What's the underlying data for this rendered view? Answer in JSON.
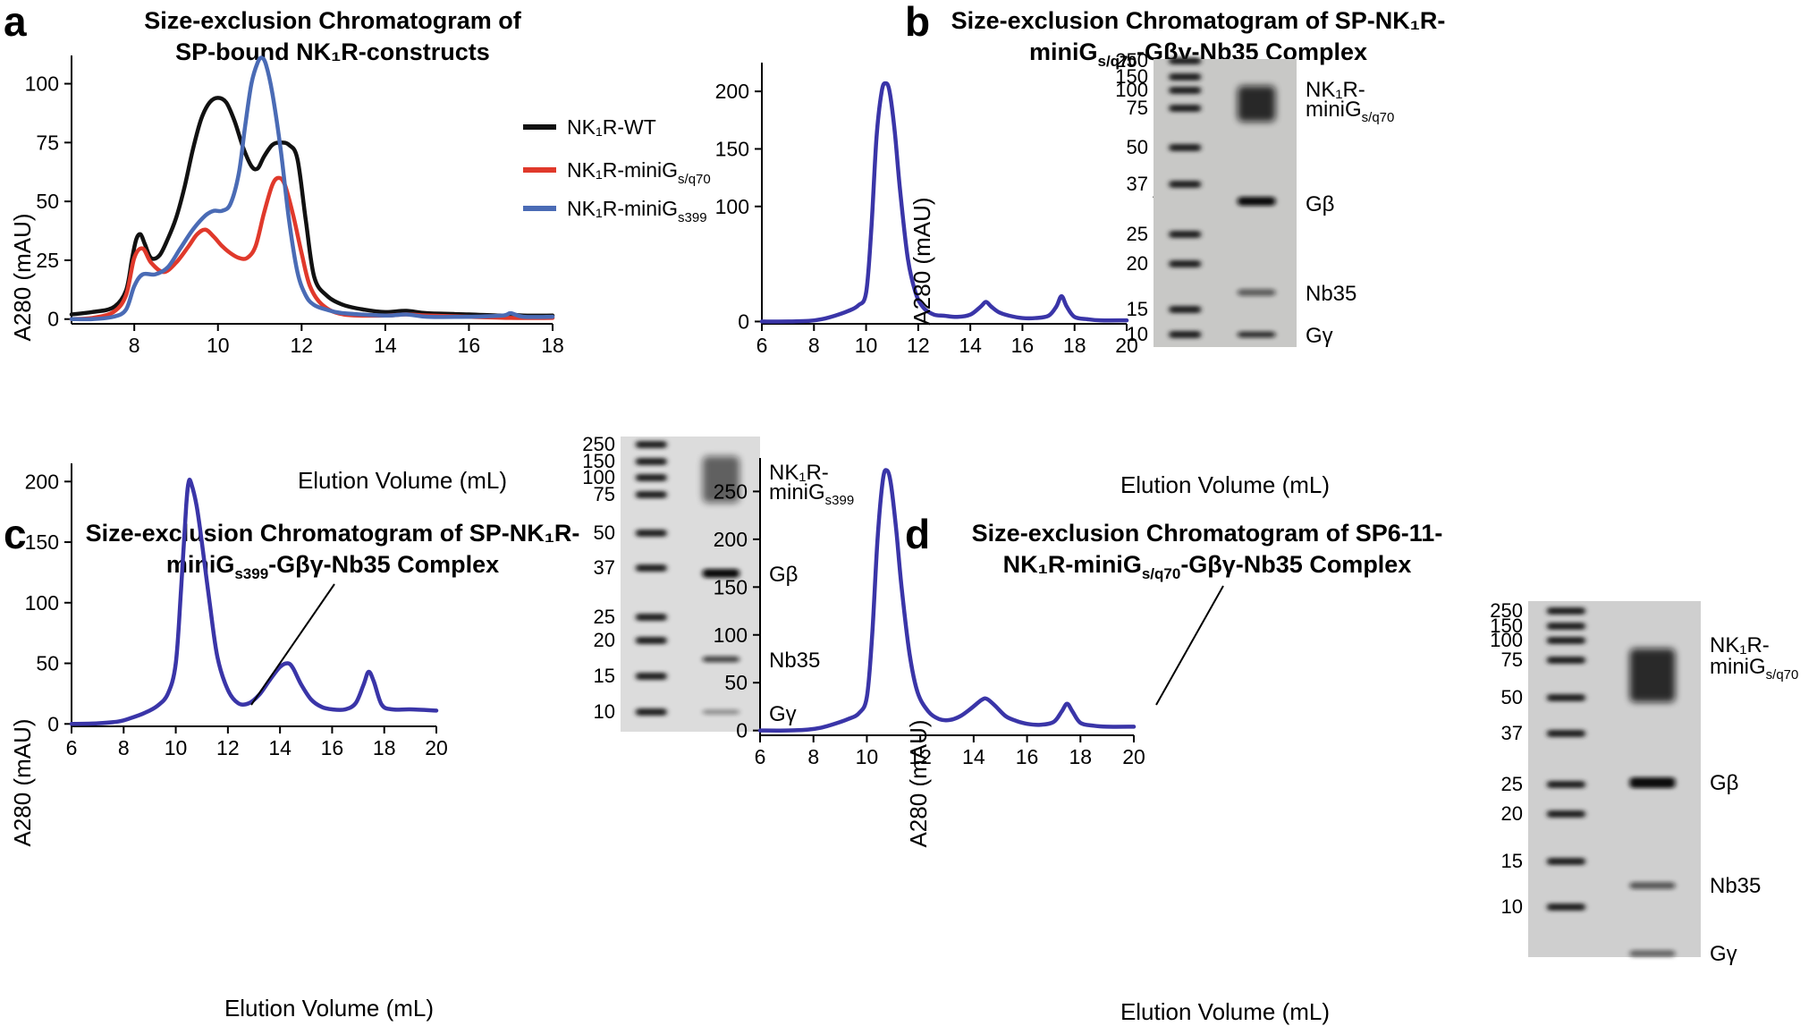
{
  "panels": {
    "a": {
      "letter": "a",
      "title": [
        "Size-exclusion Chromatogram of",
        "SP-bound NK₁R-constructs"
      ],
      "xlabel": "Elution Volume (mL)",
      "ylabel": "A280 (mAU)",
      "legend": [
        {
          "main": "NK₁R-WT",
          "sub": ""
        },
        {
          "main": "NK₁R-miniG",
          "sub": "s/q70"
        },
        {
          "main": "NK₁R-miniG",
          "sub": "s399"
        }
      ]
    },
    "b": {
      "letter": "b",
      "title": [
        "Size-exclusion Chromatogram of SP-NK₁R-",
        "miniG",
        "s/q70",
        "-Gβγ-Nb35 Complex"
      ],
      "xlabel": "Elution Volume (mL)",
      "ylabel": "A280 (mAU)"
    },
    "c": {
      "letter": "c",
      "title": [
        "Size-exclusion Chromatogram of SP-NK₁R-",
        "miniG",
        "s399",
        "-Gβγ-Nb35 Complex"
      ],
      "xlabel": "Elution Volume (mL)",
      "ylabel": "A280 (mAU)"
    },
    "d": {
      "letter": "d",
      "title": [
        "Size-exclusion Chromatogram of SP6-11-",
        "NK₁R-miniG",
        "s/q70",
        "-Gβγ-Nb35 Complex"
      ],
      "xlabel": "Elution Volume (mL)",
      "ylabel": "A280 (mAU)"
    }
  },
  "gels": {
    "ladder_markers": [
      "250",
      "150",
      "100",
      "75",
      "50",
      "37",
      "25",
      "20",
      "15",
      "10"
    ],
    "b": {
      "bands": [
        "NK₁R-",
        "miniG",
        "s/q70",
        "Gβ",
        "Nb35",
        "Gγ"
      ]
    },
    "c": {
      "bands": [
        "NK₁R-",
        "miniG",
        "s399",
        "Gβ",
        "Nb35",
        "Gγ"
      ]
    },
    "d": {
      "bands": [
        "NK₁R-",
        "miniG",
        "s/q70",
        "Gβ",
        "Nb35",
        "Gγ"
      ]
    }
  },
  "colors": {
    "wt": "#111111",
    "sq70": "#e0392b",
    "s399": "#4a6bb5",
    "complex": "#3a35a8"
  },
  "chart_data": [
    {
      "type": "line",
      "panel": "a",
      "title": "Size-exclusion Chromatogram of SP-bound NK1R-constructs",
      "xlabel": "Elution Volume (mL)",
      "ylabel": "A280 (mAU)",
      "xlim": [
        6.5,
        18
      ],
      "ylim": [
        -2,
        112
      ],
      "xticks": [
        8,
        10,
        12,
        14,
        16,
        18
      ],
      "yticks": [
        0,
        25,
        50,
        75,
        100
      ],
      "series": [
        {
          "name": "NK₁R-WT",
          "color": "#111111",
          "x": [
            6.5,
            7.0,
            7.5,
            7.8,
            7.95,
            8.05,
            8.15,
            8.25,
            8.4,
            8.6,
            8.8,
            9.0,
            9.2,
            9.4,
            9.6,
            9.8,
            10.0,
            10.2,
            10.4,
            10.6,
            10.8,
            10.95,
            11.1,
            11.3,
            11.5,
            11.7,
            11.9,
            12.1,
            12.3,
            12.6,
            13.0,
            13.5,
            14.0,
            14.5,
            15.0,
            16.0,
            16.8,
            17.0,
            17.3,
            18.0
          ],
          "y": [
            2,
            3,
            5,
            12,
            26,
            34,
            36,
            32,
            26,
            27,
            34,
            43,
            56,
            72,
            85,
            92,
            94,
            92,
            84,
            73,
            65,
            64,
            69,
            74,
            75,
            74,
            68,
            42,
            18,
            10,
            6,
            4,
            3,
            3.5,
            2.5,
            2,
            1.5,
            2,
            1.5,
            1.5
          ]
        },
        {
          "name": "NK₁R-miniG s/q70",
          "color": "#e0392b",
          "x": [
            6.5,
            7.0,
            7.5,
            7.8,
            8.0,
            8.2,
            8.4,
            8.7,
            9.0,
            9.3,
            9.5,
            9.7,
            9.9,
            10.1,
            10.3,
            10.5,
            10.7,
            10.9,
            11.1,
            11.3,
            11.45,
            11.6,
            11.8,
            12.0,
            12.2,
            12.5,
            13.0,
            14.0,
            14.5,
            15.0,
            16.0,
            17.0,
            18.0
          ],
          "y": [
            0,
            0.5,
            3,
            10,
            26,
            30,
            24,
            20,
            24,
            31,
            36,
            38,
            35,
            31,
            28,
            26,
            26,
            31,
            45,
            57,
            60,
            57,
            44,
            28,
            14,
            6,
            2,
            1.5,
            2,
            1.5,
            1,
            0.5,
            0.5
          ]
        },
        {
          "name": "NK₁R-miniG s399",
          "color": "#4a6bb5",
          "x": [
            6.5,
            7.0,
            7.5,
            7.8,
            8.0,
            8.2,
            8.5,
            8.8,
            9.1,
            9.4,
            9.7,
            9.9,
            10.1,
            10.3,
            10.5,
            10.65,
            10.8,
            10.95,
            11.05,
            11.15,
            11.3,
            11.5,
            11.7,
            11.9,
            12.1,
            12.3,
            12.6,
            13.0,
            14.0,
            14.5,
            15.0,
            16.0,
            16.8,
            17.0,
            17.3,
            18.0
          ],
          "y": [
            0,
            0,
            1,
            4,
            14,
            19,
            19,
            22,
            30,
            38,
            44,
            46,
            46,
            49,
            62,
            82,
            100,
            109,
            111,
            108,
            96,
            72,
            42,
            20,
            10,
            6,
            4,
            2.5,
            1.5,
            2,
            1,
            1,
            1.5,
            2.5,
            1,
            1
          ]
        }
      ]
    },
    {
      "type": "line",
      "panel": "b",
      "title": "Size-exclusion Chromatogram of SP-NK1R-miniGs/q70-Gβγ-Nb35 Complex",
      "xlabel": "Elution Volume (mL)",
      "ylabel": "A280 (mAU)",
      "xlim": [
        6,
        20
      ],
      "ylim": [
        -2,
        225
      ],
      "xticks": [
        6,
        8,
        10,
        12,
        14,
        16,
        18,
        20
      ],
      "yticks": [
        0,
        100,
        150,
        200
      ],
      "series": [
        {
          "name": "complex",
          "color": "#3a35a8",
          "x": [
            6,
            7,
            7.8,
            8.3,
            8.8,
            9.3,
            9.7,
            10.0,
            10.2,
            10.4,
            10.6,
            10.75,
            10.9,
            11.1,
            11.3,
            11.6,
            11.9,
            12.2,
            12.6,
            13.0,
            13.5,
            14.0,
            14.4,
            14.6,
            14.8,
            15.1,
            15.5,
            16.0,
            16.5,
            17.0,
            17.3,
            17.5,
            17.7,
            18.0,
            18.5,
            19.0,
            20.0
          ],
          "y": [
            0,
            0,
            0.5,
            2,
            5,
            9,
            14,
            25,
            80,
            160,
            200,
            207,
            200,
            165,
            115,
            55,
            25,
            12,
            6,
            5,
            4,
            6,
            13,
            17,
            13,
            8,
            5,
            3,
            3,
            5,
            13,
            22,
            13,
            4,
            2,
            1,
            1
          ]
        }
      ]
    },
    {
      "type": "line",
      "panel": "c",
      "title": "Size-exclusion Chromatogram of SP-NK1R-miniGs399-Gβγ-Nb35 Complex",
      "xlabel": "Elution Volume (mL)",
      "ylabel": "A280 (mAU)",
      "xlim": [
        6,
        20
      ],
      "ylim": [
        -2,
        215
      ],
      "xticks": [
        6,
        8,
        10,
        12,
        14,
        16,
        18,
        20
      ],
      "yticks": [
        0,
        50,
        100,
        150,
        200
      ],
      "series": [
        {
          "name": "complex",
          "color": "#3a35a8",
          "x": [
            6,
            7,
            7.8,
            8.3,
            8.8,
            9.3,
            9.7,
            10.0,
            10.2,
            10.4,
            10.5,
            10.6,
            10.8,
            11.0,
            11.3,
            11.6,
            12.0,
            12.4,
            12.8,
            13.2,
            13.6,
            14.0,
            14.3,
            14.5,
            14.8,
            15.2,
            15.6,
            16.0,
            16.5,
            16.9,
            17.2,
            17.4,
            17.6,
            17.9,
            18.3,
            19.0,
            20.0
          ],
          "y": [
            0,
            0.5,
            2,
            5,
            9,
            15,
            25,
            50,
            110,
            180,
            200,
            198,
            180,
            150,
            100,
            55,
            28,
            17,
            17,
            24,
            36,
            47,
            50,
            46,
            33,
            20,
            14,
            12,
            12,
            17,
            32,
            43,
            35,
            16,
            12,
            12,
            11
          ]
        }
      ]
    },
    {
      "type": "line",
      "panel": "d",
      "title": "Size-exclusion Chromatogram of SP6-11-NK1R-miniGs/q70-Gβγ-Nb35 Complex",
      "xlabel": "Elution Volume (mL)",
      "ylabel": "A280 (mAU)",
      "xlim": [
        6,
        20
      ],
      "ylim": [
        -5,
        285
      ],
      "xticks": [
        6,
        8,
        10,
        12,
        14,
        16,
        18,
        20
      ],
      "yticks": [
        0,
        50,
        100,
        150,
        200,
        250
      ],
      "series": [
        {
          "name": "complex",
          "color": "#3a35a8",
          "x": [
            6,
            7,
            7.8,
            8.3,
            8.8,
            9.3,
            9.7,
            10.0,
            10.2,
            10.4,
            10.6,
            10.75,
            10.9,
            11.1,
            11.3,
            11.6,
            11.9,
            12.3,
            12.7,
            13.1,
            13.5,
            13.9,
            14.3,
            14.5,
            14.8,
            15.2,
            15.6,
            16.0,
            16.5,
            17.0,
            17.3,
            17.5,
            17.7,
            18.0,
            18.5,
            19.0,
            20.0
          ],
          "y": [
            0,
            0,
            1,
            3,
            7,
            12,
            18,
            35,
            100,
            200,
            262,
            272,
            258,
            210,
            150,
            80,
            40,
            20,
            12,
            11,
            15,
            23,
            32,
            33,
            26,
            15,
            10,
            7,
            6,
            9,
            20,
            28,
            20,
            8,
            5,
            4,
            4
          ]
        }
      ]
    }
  ]
}
